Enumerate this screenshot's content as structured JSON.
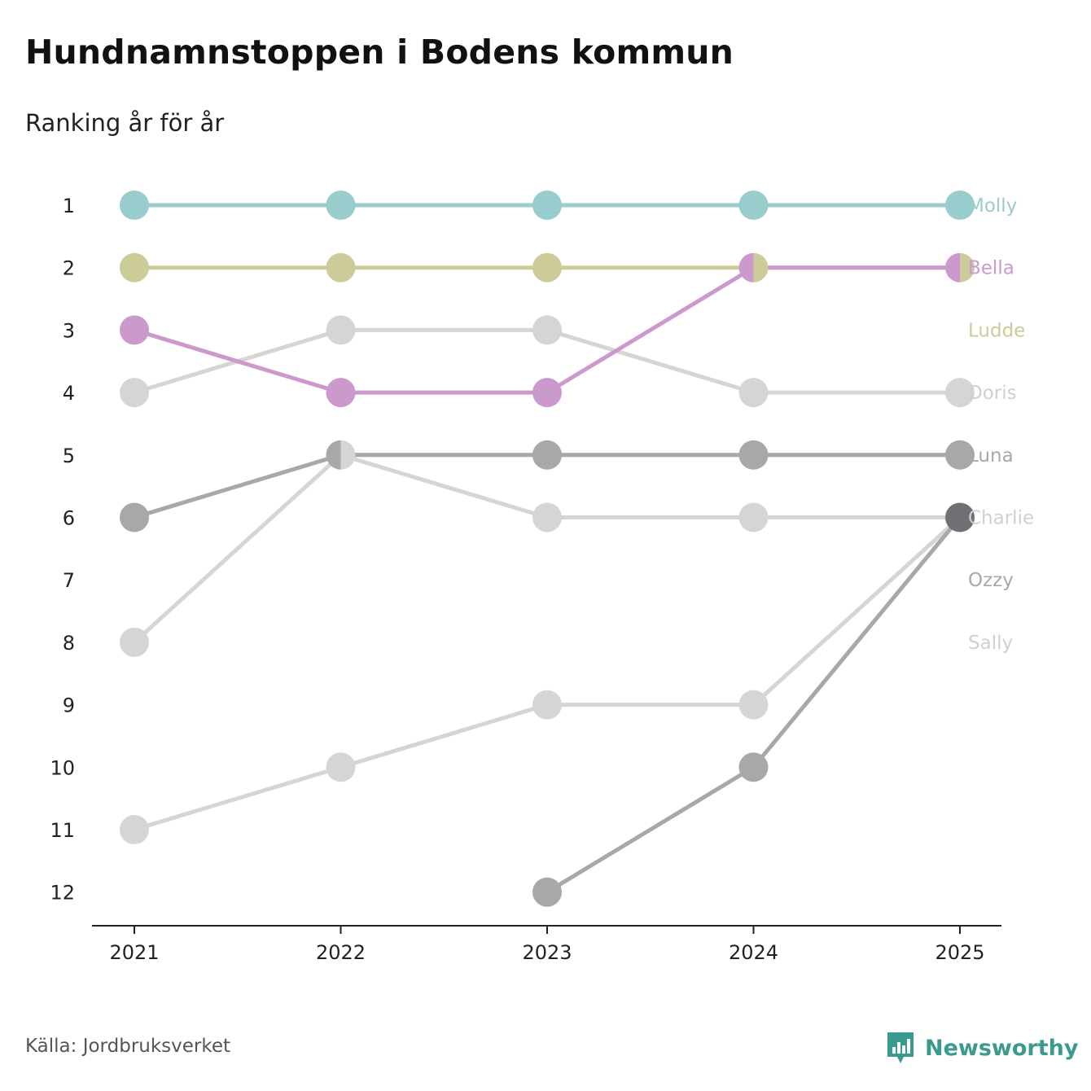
{
  "header": {
    "title": "Hundnamnstoppen i Bodens kommun",
    "subtitle": "Ranking år för år"
  },
  "footer": {
    "source": "Källa: Jordbruksverket",
    "brand": "Newsworthy",
    "brand_color": "#3a9a8e",
    "brand_icon": "newsworthy-logo-icon"
  },
  "chart_data": {
    "type": "line",
    "title": "Hundnamnstoppen i Bodens kommun",
    "subtitle": "Ranking år för år",
    "xlabel": "",
    "ylabel": "",
    "x": [
      "2021",
      "2022",
      "2023",
      "2024",
      "2025"
    ],
    "y_ticks": [
      1,
      2,
      3,
      4,
      5,
      6,
      7,
      8,
      9,
      10,
      11,
      12
    ],
    "y_inverted": true,
    "ylim": [
      1,
      12
    ],
    "grid": false,
    "legend": "direct labels right of 2025",
    "series": [
      {
        "name": "Sally",
        "color": "#d5d5d5",
        "values": [
          11,
          10,
          9,
          9,
          6
        ]
      },
      {
        "name": "Ozzy",
        "color": "#a8a8a8",
        "values": [
          null,
          null,
          12,
          10,
          6
        ]
      },
      {
        "name": "Charlie",
        "color": "#d5d5d5",
        "values": [
          8,
          5,
          6,
          6,
          6
        ]
      },
      {
        "name": "Luna",
        "color": "#a8a8a8",
        "values": [
          6,
          5,
          5,
          5,
          5
        ]
      },
      {
        "name": "Doris",
        "color": "#d5d5d5",
        "values": [
          4,
          3,
          3,
          4,
          4
        ]
      },
      {
        "name": "Ludde",
        "color": "#cccc99",
        "values": [
          2,
          2,
          2,
          2,
          2
        ]
      },
      {
        "name": "Bella",
        "color": "#cc99cc",
        "values": [
          3,
          4,
          4,
          2,
          2
        ]
      },
      {
        "name": "Molly",
        "color": "#99cccc",
        "values": [
          1,
          1,
          1,
          1,
          1
        ]
      }
    ],
    "end_labels": [
      {
        "name": "Molly",
        "rank": 1,
        "color": "#99cccc"
      },
      {
        "name": "Bella",
        "rank": 2,
        "color": "#cc99cc"
      },
      {
        "name": "Ludde",
        "rank": 3,
        "color": "#cccc99"
      },
      {
        "name": "Doris",
        "rank": 4,
        "color": "#d0d0d0"
      },
      {
        "name": "Luna",
        "rank": 5,
        "color": "#a8a8a8"
      },
      {
        "name": "Charlie",
        "rank": 6,
        "color": "#d0d0d0"
      },
      {
        "name": "Ozzy",
        "rank": 7,
        "color": "#a8a8a8"
      },
      {
        "name": "Sally",
        "rank": 8,
        "color": "#d0d0d0"
      }
    ],
    "shared_point_color": "#6f6f74"
  }
}
